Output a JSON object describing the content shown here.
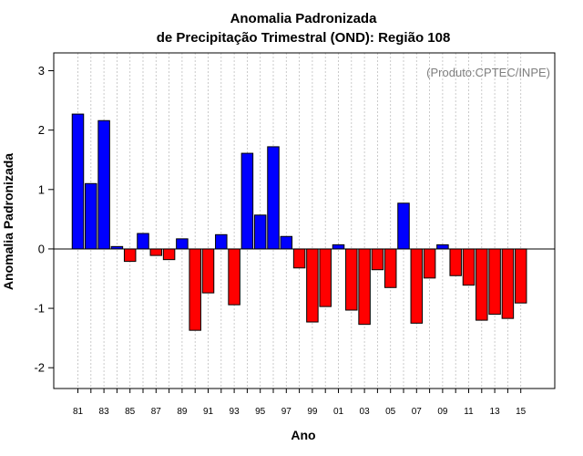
{
  "chart_data": {
    "type": "bar",
    "title_line1": "Anomalia Padronizada",
    "title_line2": "de Precipitação Trimestral (OND): Região 108",
    "xlabel": "Ano",
    "ylabel": "Anomalia Padronizada",
    "credit": "(Produto:CPTEC/INPE)",
    "ylim": [
      -2.35,
      3.3
    ],
    "yticks": [
      "-2",
      "-1",
      "0",
      "1",
      "2",
      "3"
    ],
    "categories": [
      "81",
      "82",
      "83",
      "84",
      "85",
      "86",
      "87",
      "88",
      "89",
      "90",
      "91",
      "92",
      "93",
      "94",
      "95",
      "96",
      "97",
      "98",
      "99",
      "00",
      "01",
      "02",
      "03",
      "04",
      "05",
      "06",
      "07",
      "08",
      "09",
      "10",
      "11",
      "12",
      "13",
      "14",
      "15"
    ],
    "xtick_labels": [
      "81",
      "83",
      "85",
      "87",
      "89",
      "91",
      "93",
      "95",
      "97",
      "99",
      "01",
      "03",
      "05",
      "07",
      "09",
      "11",
      "13",
      "15"
    ],
    "values": [
      2.27,
      1.1,
      2.16,
      0.04,
      -0.21,
      0.26,
      -0.11,
      -0.18,
      0.17,
      -1.37,
      -0.74,
      0.24,
      -0.94,
      1.61,
      0.57,
      1.72,
      0.21,
      -0.32,
      -1.23,
      -0.97,
      0.07,
      -1.03,
      -1.27,
      -0.35,
      -0.65,
      0.77,
      -1.25,
      -0.49,
      0.07,
      -0.45,
      -0.61,
      -1.2,
      -1.1,
      -1.17,
      -0.91
    ],
    "colors": {
      "positive": "#0000ff",
      "negative": "#ff0000",
      "grid": "#bebebe"
    },
    "grid": true
  }
}
